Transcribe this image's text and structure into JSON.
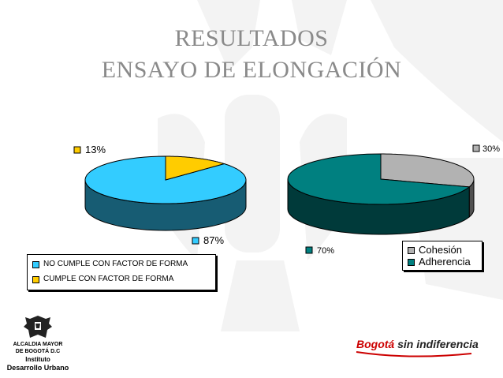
{
  "slide": {
    "title_line_1": "RESULTADOS",
    "title_line_2": "ENSAYO DE ELONGACIÓN",
    "footer": {
      "institution_line_1": "ALCALDIA MAYOR",
      "institution_line_2": "DE BOGOTÁ D.C",
      "institute_line_1": "Instituto",
      "institute_line_2": "Desarrollo Urbano",
      "slogan_part_1": "Bogotá",
      "slogan_part_2": "sin indiferencia"
    }
  },
  "chart_data": [
    {
      "type": "pie",
      "style": "3d",
      "categories": [
        "NO CUMPLE CON FACTOR DE FORMA",
        "CUMPLE CON FACTOR DE FORMA"
      ],
      "values": [
        87,
        13
      ],
      "data_labels": [
        "87%",
        "13%"
      ],
      "colors": [
        "#33ccff",
        "#ffcc00"
      ],
      "legend_position": "bottom-left"
    },
    {
      "type": "pie",
      "style": "3d",
      "categories": [
        "Cohesión",
        "Adherencia"
      ],
      "values": [
        30,
        70
      ],
      "data_labels": [
        "30%",
        "70%"
      ],
      "colors": [
        "#b2b2b2",
        "#008080"
      ],
      "legend_position": "bottom-right"
    }
  ]
}
